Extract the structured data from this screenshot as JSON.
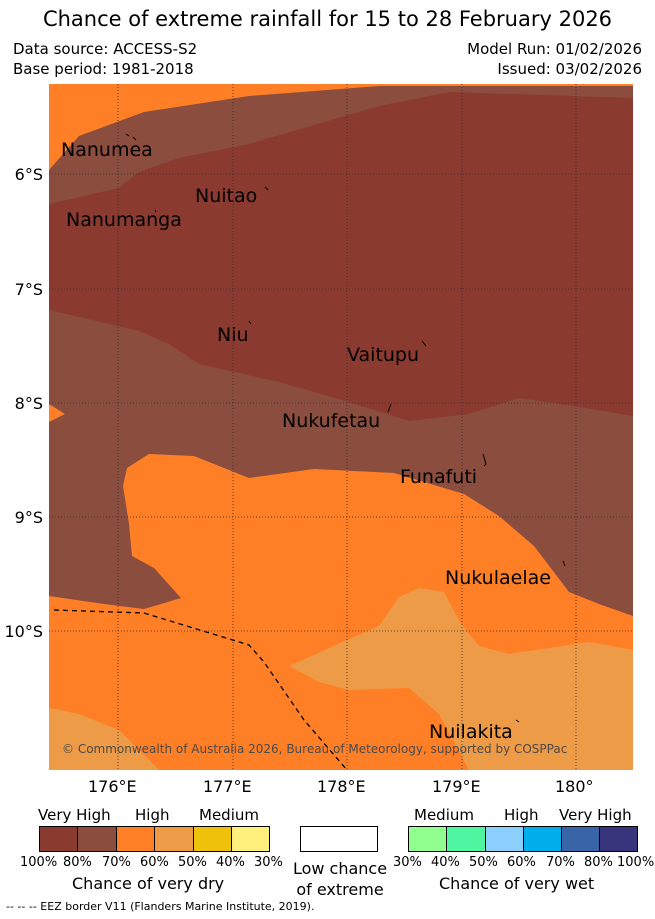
{
  "title": "Chance of extreme rainfall for 15 to 28 February 2026",
  "meta": {
    "data_source": "Data source: ACCESS-S2",
    "base_period": "Base period: 1981-2018",
    "model_run": "Model Run: 01/02/2026",
    "issued": "Issued: 03/02/2026"
  },
  "map": {
    "lat_labels": [
      "6°S",
      "7°S",
      "8°S",
      "9°S",
      "10°S"
    ],
    "lon_labels": [
      "176°E",
      "177°E",
      "178°E",
      "179°E",
      "180°"
    ],
    "islands": [
      "Nanumea",
      "Nuitao",
      "Nanumanga",
      "Niu",
      "Vaitupu",
      "Nukufetau",
      "Funafuti",
      "Nukulaelae",
      "Nuilakita"
    ],
    "copyright": "© Commonwealth of Australia 2026, Bureau of Meteorology, supported by COSPPac",
    "colors": {
      "very_high_dry": "#8b3a30",
      "high_dry_80": "#8b4d3e",
      "high_dry": "#ff7f27",
      "medium_dry": "#ee9b48"
    }
  },
  "legend": {
    "dry": {
      "headers": [
        "Very High",
        "High",
        "Medium"
      ],
      "colors": [
        "#8b3a30",
        "#8b4d3e",
        "#ff7f27",
        "#ee9b48",
        "#eec10b",
        "#fff07e"
      ],
      "percents": [
        "100%",
        "80%",
        "70%",
        "60%",
        "50%",
        "40%",
        "30%"
      ],
      "caption": "Chance of very dry"
    },
    "low": {
      "caption_line1": "Low chance",
      "caption_line2": "of extreme"
    },
    "wet": {
      "headers": [
        "Medium",
        "High",
        "Very High"
      ],
      "colors": [
        "#90ff90",
        "#4ff5a0",
        "#8dcffc",
        "#00aeec",
        "#3a64a8",
        "#38357c"
      ],
      "percents": [
        "30%",
        "40%",
        "50%",
        "60%",
        "70%",
        "80%",
        "100%"
      ],
      "caption": "Chance of very wet"
    },
    "eez_note": "-- -- -- EEZ border V11 (Flanders Marine Institute, 2019)."
  }
}
